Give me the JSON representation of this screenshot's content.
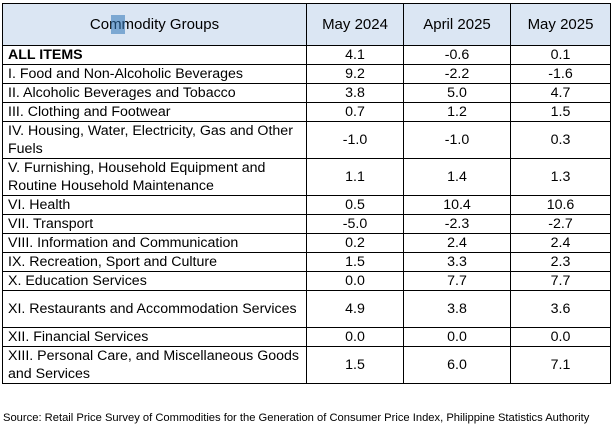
{
  "table": {
    "headers": [
      "Commodity Groups",
      "May 2024",
      "April 2025",
      "May 2025"
    ],
    "rows": [
      {
        "label": "ALL ITEMS",
        "values": [
          "4.1",
          "-0.6",
          "0.1"
        ],
        "bold": true,
        "lines": 1
      },
      {
        "label": "I. Food and Non-Alcoholic Beverages",
        "values": [
          "9.2",
          "-2.2",
          "-1.6"
        ],
        "lines": 1
      },
      {
        "label": "II. Alcoholic Beverages and Tobacco",
        "values": [
          "3.8",
          "5.0",
          "4.7"
        ],
        "lines": 1
      },
      {
        "label": "III. Clothing and Footwear",
        "values": [
          "0.7",
          "1.2",
          "1.5"
        ],
        "lines": 1
      },
      {
        "label": "IV. Housing, Water, Electricity, Gas and Other Fuels",
        "values": [
          "-1.0",
          "-1.0",
          "0.3"
        ],
        "lines": 2
      },
      {
        "label": "V. Furnishing, Household Equipment and Routine Household Maintenance",
        "values": [
          "1.1",
          "1.4",
          "1.3"
        ],
        "lines": 2
      },
      {
        "label": "VI. Health",
        "values": [
          "0.5",
          "10.4",
          "10.6"
        ],
        "lines": 1
      },
      {
        "label": "VII. Transport",
        "values": [
          "-5.0",
          "-2.3",
          "-2.7"
        ],
        "lines": 1
      },
      {
        "label": "VIII. Information and Communication",
        "values": [
          "0.2",
          "2.4",
          "2.4"
        ],
        "lines": 1
      },
      {
        "label": "IX. Recreation, Sport and Culture",
        "values": [
          "1.5",
          "3.3",
          "2.3"
        ],
        "lines": 1
      },
      {
        "label": "X. Education Services",
        "values": [
          "0.0",
          "7.7",
          "7.7"
        ],
        "lines": 1
      },
      {
        "label": "XI. Restaurants and Accommodation Services",
        "values": [
          "4.9",
          "3.8",
          "3.6"
        ],
        "lines": 2
      },
      {
        "label": "XII. Financial Services",
        "values": [
          "0.0",
          "0.0",
          "0.0"
        ],
        "lines": 1
      },
      {
        "label": "XIII. Personal Care, and Miscellaneous Goods and Services",
        "values": [
          "1.5",
          "6.0",
          "7.1"
        ],
        "lines": 2
      }
    ]
  },
  "source": "Source: Retail Price Survey of Commodities for the Generation of Consumer Price Index, Philippine Statistics Authority"
}
